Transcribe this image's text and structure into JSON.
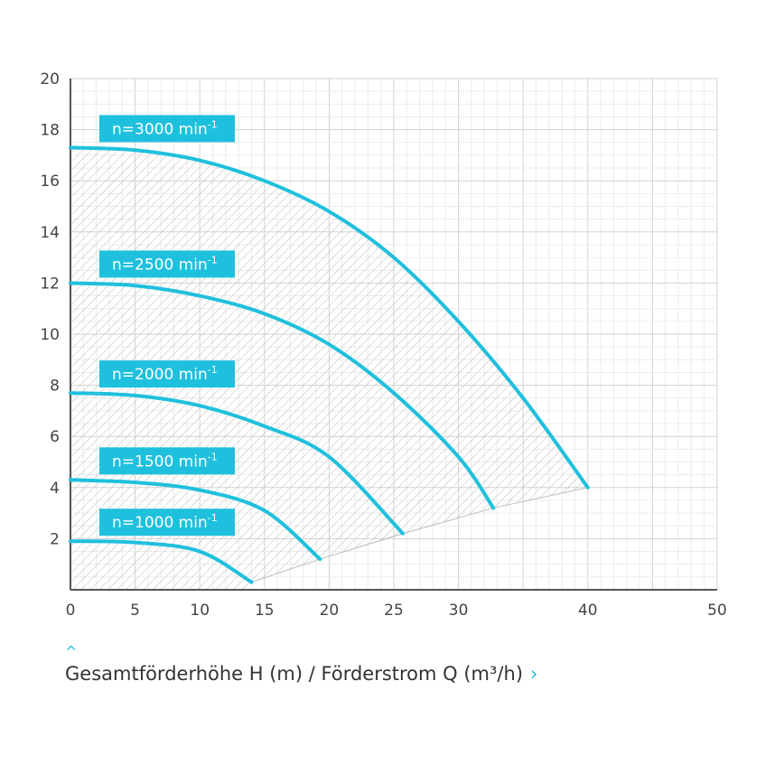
{
  "chart_data": {
    "type": "line",
    "xlim": [
      0,
      50
    ],
    "ylim": [
      0,
      20
    ],
    "x_ticks": [
      0,
      5,
      10,
      15,
      20,
      25,
      30,
      40,
      50
    ],
    "y_ticks": [
      2,
      4,
      6,
      8,
      10,
      12,
      14,
      16,
      18,
      20
    ],
    "grid": true,
    "colors": {
      "line": "#1fc0dd",
      "badge": "#1fc0dd",
      "axis": "#555555",
      "grid": "#d7d7d7",
      "hatch": "#bdbdbd"
    },
    "series": [
      {
        "name": "n=3000 min",
        "sup": "-1",
        "points": [
          [
            0,
            17.3
          ],
          [
            5,
            17.2
          ],
          [
            10,
            16.8
          ],
          [
            15,
            16.0
          ],
          [
            20,
            14.8
          ],
          [
            25,
            13.0
          ],
          [
            30,
            10.5
          ],
          [
            35,
            7.5
          ],
          [
            40,
            4.0
          ]
        ]
      },
      {
        "name": "n=2500 min",
        "sup": "-1",
        "points": [
          [
            0,
            12.0
          ],
          [
            5,
            11.9
          ],
          [
            10,
            11.5
          ],
          [
            15,
            10.8
          ],
          [
            20,
            9.6
          ],
          [
            25,
            7.7
          ],
          [
            30,
            5.2
          ],
          [
            32.7,
            3.2
          ]
        ]
      },
      {
        "name": "n=2000 min",
        "sup": "-1",
        "points": [
          [
            0,
            7.7
          ],
          [
            5,
            7.6
          ],
          [
            10,
            7.2
          ],
          [
            15,
            6.4
          ],
          [
            20,
            5.2
          ],
          [
            25.7,
            2.2
          ]
        ]
      },
      {
        "name": "n=1500 min",
        "sup": "-1",
        "points": [
          [
            0,
            4.3
          ],
          [
            5,
            4.2
          ],
          [
            10,
            3.9
          ],
          [
            15,
            3.1
          ],
          [
            19.3,
            1.2
          ]
        ]
      },
      {
        "name": "n=1000 min",
        "sup": "-1",
        "points": [
          [
            0,
            1.9
          ],
          [
            5,
            1.85
          ],
          [
            10,
            1.5
          ],
          [
            14,
            0.3
          ]
        ]
      }
    ],
    "envelope_end": [
      [
        14,
        0.3
      ],
      [
        19.3,
        1.2
      ],
      [
        25.7,
        2.2
      ],
      [
        32.7,
        3.2
      ],
      [
        40,
        4.0
      ]
    ]
  },
  "caption": {
    "text": "Gesamtförderhöhe H (m) / Förderstrom Q (m³/h)",
    "up_icon": "chevron-up-icon",
    "right_icon": "chevron-right-icon"
  }
}
